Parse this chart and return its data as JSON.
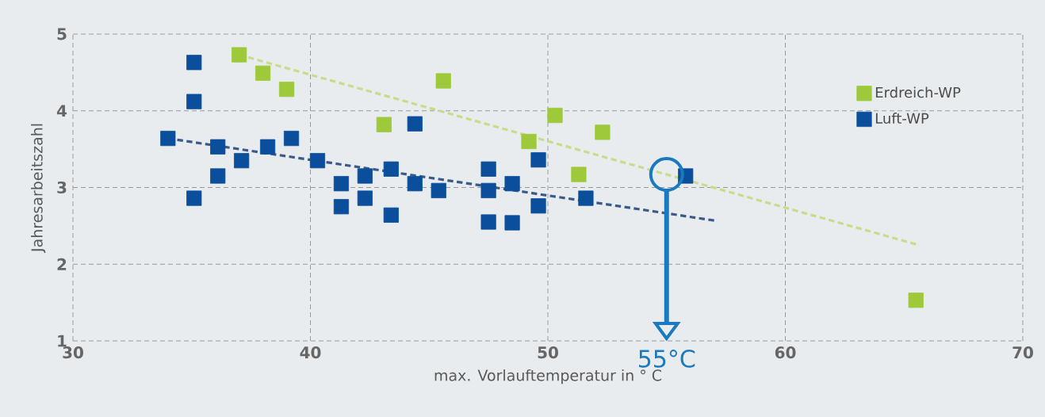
{
  "chart_data": {
    "type": "scatter",
    "xlabel": "max. Vorlauftemperatur in ° C",
    "ylabel": "Jahresarbeitszahl",
    "xlim": [
      30,
      70
    ],
    "ylim": [
      1,
      5
    ],
    "xticks": [
      30,
      40,
      50,
      60,
      70
    ],
    "yticks": [
      1,
      2,
      3,
      4,
      5
    ],
    "grid": true,
    "legend": "top right",
    "series": [
      {
        "name": "Erdreich-WP",
        "marker": "square",
        "color": "#9dc93b",
        "x": [
          37.0,
          38.0,
          39.0,
          43.1,
          45.6,
          49.2,
          50.3,
          51.3,
          52.3,
          65.5
        ],
        "values": [
          4.73,
          4.49,
          4.28,
          3.82,
          4.39,
          3.6,
          3.94,
          3.17,
          3.72,
          1.53
        ]
      },
      {
        "name": "Luft-WP",
        "marker": "square",
        "color": "#0b4f9c",
        "x": [
          34.0,
          35.1,
          35.1,
          35.1,
          36.1,
          36.1,
          37.1,
          38.2,
          39.2,
          40.3,
          41.3,
          41.3,
          42.3,
          42.3,
          43.4,
          43.4,
          44.4,
          44.4,
          45.4,
          47.5,
          47.5,
          47.5,
          48.5,
          48.5,
          49.6,
          49.6,
          51.6,
          55.8
        ],
        "values": [
          3.64,
          4.63,
          4.12,
          2.86,
          3.53,
          3.15,
          3.35,
          3.53,
          3.64,
          3.35,
          3.05,
          2.75,
          3.15,
          2.86,
          3.24,
          2.64,
          3.83,
          3.05,
          2.96,
          3.24,
          2.96,
          2.55,
          3.05,
          2.54,
          3.36,
          2.76,
          2.86,
          3.15
        ]
      },
      {
        "type": "line",
        "marker": "none",
        "line_style": "dashed",
        "color": "#c8dd8a",
        "x": [
          37.0,
          65.5
        ],
        "values": [
          4.73,
          2.26
        ]
      },
      {
        "type": "line",
        "marker": "none",
        "line_style": "dashed",
        "color": "#3a5a8a",
        "x": [
          34.0,
          57.0
        ],
        "values": [
          3.64,
          2.57
        ]
      }
    ],
    "ref_lines": [
      {
        "axis": "x",
        "value": 55,
        "label": "55°C",
        "color": "#1a7abf"
      }
    ]
  }
}
